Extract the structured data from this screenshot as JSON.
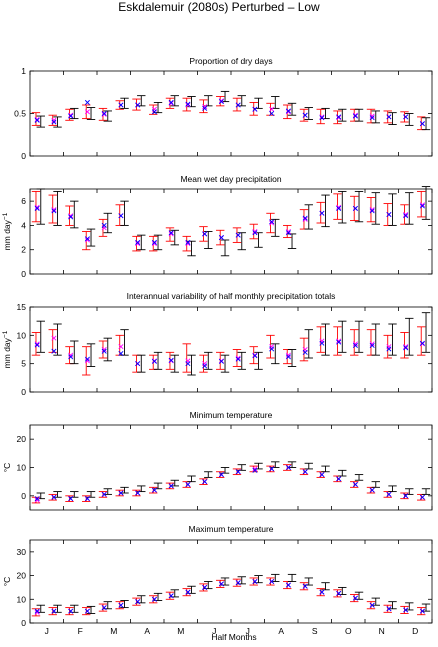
{
  "figure": {
    "title": "Eskdalemuir (2080s) Perturbed – Low",
    "xlabel": "Half Months",
    "month_labels": [
      "J",
      "F",
      "M",
      "A",
      "M",
      "J",
      "J",
      "A",
      "S",
      "O",
      "N",
      "D"
    ]
  },
  "colors": {
    "series_a_bar": "#ff0000",
    "series_b_bar": "#000000",
    "marker_blue": "#0000ff",
    "marker_magenta": "#ff00ff"
  },
  "chart_data": [
    {
      "type": "errorbar",
      "title": "Proportion of dry days",
      "ylabel": "",
      "ylim": [
        0,
        1
      ],
      "yticks": [
        0,
        0.5,
        1
      ],
      "ytick_labels": [
        "0",
        "0.5",
        "1"
      ],
      "series": [
        {
          "values": [
            0.43,
            0.42,
            0.48,
            0.52,
            0.49,
            0.6,
            0.6,
            0.55,
            0.62,
            0.6,
            0.58,
            0.65,
            0.6,
            0.55,
            0.55,
            0.52,
            0.48,
            0.46,
            0.45,
            0.48,
            0.47,
            0.46,
            0.46,
            0.38
          ],
          "upper": [
            0.51,
            0.48,
            0.55,
            0.6,
            0.56,
            0.65,
            0.67,
            0.6,
            0.68,
            0.68,
            0.66,
            0.7,
            0.68,
            0.63,
            0.62,
            0.6,
            0.55,
            0.55,
            0.53,
            0.55,
            0.55,
            0.53,
            0.52,
            0.46
          ],
          "lower": [
            0.36,
            0.36,
            0.42,
            0.44,
            0.42,
            0.55,
            0.54,
            0.49,
            0.56,
            0.53,
            0.51,
            0.59,
            0.53,
            0.48,
            0.48,
            0.44,
            0.41,
            0.38,
            0.38,
            0.41,
            0.39,
            0.39,
            0.4,
            0.31
          ]
        },
        {
          "values": [
            0.4,
            0.4,
            0.5,
            0.5,
            0.47,
            0.62,
            0.65,
            0.57,
            0.65,
            0.64,
            0.65,
            0.7,
            0.65,
            0.62,
            0.63,
            0.55,
            0.5,
            0.5,
            0.48,
            0.48,
            0.46,
            0.44,
            0.43,
            0.38
          ],
          "upper": [
            0.47,
            0.46,
            0.56,
            0.57,
            0.53,
            0.68,
            0.71,
            0.63,
            0.71,
            0.7,
            0.71,
            0.76,
            0.71,
            0.68,
            0.7,
            0.62,
            0.57,
            0.56,
            0.55,
            0.55,
            0.53,
            0.51,
            0.5,
            0.45
          ],
          "lower": [
            0.34,
            0.34,
            0.44,
            0.43,
            0.41,
            0.56,
            0.59,
            0.51,
            0.59,
            0.58,
            0.59,
            0.64,
            0.59,
            0.56,
            0.56,
            0.48,
            0.43,
            0.44,
            0.41,
            0.41,
            0.39,
            0.37,
            0.36,
            0.31
          ]
        }
      ],
      "markers_blue": [
        0.42,
        0.4,
        0.47,
        0.63,
        0.5,
        0.6,
        0.6,
        0.52,
        0.63,
        0.61,
        0.56,
        0.64,
        0.6,
        0.55,
        0.5,
        0.53,
        0.48,
        0.45,
        0.46,
        0.47,
        0.45,
        0.46,
        0.46,
        0.38
      ],
      "markers_magenta": [
        0.43,
        0.42,
        0.48,
        0.52,
        0.49,
        0.6,
        0.6,
        0.55,
        0.62,
        0.6,
        0.58,
        0.65,
        0.6,
        0.55,
        0.55,
        0.52,
        0.48,
        0.46,
        0.45,
        0.48,
        0.47,
        0.46,
        0.46,
        0.38
      ]
    },
    {
      "type": "errorbar",
      "title": "Mean wet day precipitation",
      "ylabel": "mm day",
      "ylabel_sup": "−1",
      "ylim": [
        0,
        7
      ],
      "yticks": [
        0,
        2,
        4,
        6
      ],
      "ytick_labels": [
        "0",
        "2",
        "4",
        "6"
      ],
      "series": [
        {
          "values": [
            5.5,
            5.3,
            4.8,
            2.8,
            3.8,
            4.8,
            2.5,
            2.5,
            3.3,
            2.5,
            3.3,
            3.0,
            3.2,
            3.5,
            4.2,
            3.5,
            4.5,
            5.0,
            5.5,
            5.4,
            5.3,
            4.9,
            4.9,
            5.7
          ],
          "upper": [
            6.8,
            6.5,
            5.6,
            3.5,
            4.5,
            5.7,
            3.1,
            3.1,
            3.8,
            3.1,
            3.9,
            3.6,
            3.8,
            4.1,
            5.0,
            4.0,
            5.3,
            5.9,
            6.6,
            6.4,
            6.3,
            5.8,
            5.7,
            6.8
          ],
          "lower": [
            4.3,
            4.2,
            4.0,
            2.0,
            3.1,
            4.0,
            1.9,
            1.9,
            2.7,
            1.9,
            2.7,
            2.4,
            2.6,
            2.9,
            3.4,
            3.0,
            3.7,
            4.2,
            4.5,
            4.4,
            4.3,
            4.0,
            4.1,
            4.7
          ]
        },
        {
          "values": [
            5.4,
            5.2,
            4.8,
            3.0,
            4.2,
            5.0,
            2.6,
            2.6,
            3.0,
            2.1,
            2.8,
            2.1,
            2.7,
            2.8,
            3.8,
            2.7,
            4.7,
            5.2,
            5.5,
            5.5,
            5.4,
            5.3,
            5.4,
            5.8
          ],
          "upper": [
            7.0,
            6.8,
            6.0,
            3.7,
            5.0,
            6.0,
            3.2,
            3.2,
            3.6,
            2.7,
            3.5,
            2.8,
            3.4,
            3.4,
            4.5,
            3.3,
            5.7,
            6.5,
            6.8,
            6.8,
            6.7,
            6.6,
            6.7,
            7.2
          ],
          "lower": [
            4.1,
            4.0,
            3.8,
            2.3,
            3.4,
            4.0,
            2.0,
            2.0,
            2.4,
            1.5,
            2.1,
            1.5,
            2.0,
            2.2,
            3.1,
            2.1,
            3.7,
            3.9,
            4.2,
            4.3,
            4.1,
            4.0,
            4.1,
            4.5
          ]
        }
      ],
      "markers_blue": [
        5.4,
        5.2,
        4.7,
        2.9,
        4.0,
        4.8,
        2.6,
        2.6,
        3.4,
        2.6,
        3.3,
        3.0,
        3.2,
        3.4,
        4.3,
        3.4,
        4.6,
        5.0,
        5.4,
        5.4,
        5.2,
        4.9,
        4.8,
        5.6
      ],
      "markers_magenta": [
        5.5,
        5.3,
        4.8,
        2.8,
        3.8,
        4.8,
        2.5,
        2.5,
        3.3,
        2.5,
        3.3,
        3.0,
        3.2,
        3.5,
        4.2,
        3.5,
        4.5,
        5.0,
        5.5,
        5.4,
        5.3,
        4.9,
        4.9,
        5.7
      ]
    },
    {
      "type": "errorbar",
      "title": "Interannual variability of half monthly precipitation totals",
      "ylabel": "mm day",
      "ylabel_sup": "−1",
      "ylim": [
        0,
        15
      ],
      "yticks": [
        0,
        5,
        10,
        15
      ],
      "ytick_labels": [
        "0",
        "5",
        "10",
        "15"
      ],
      "series": [
        {
          "values": [
            8.5,
            9.5,
            6.5,
            5.5,
            7.5,
            8.0,
            5.0,
            5.5,
            5.5,
            5.5,
            5.0,
            5.5,
            6.0,
            6.5,
            8.0,
            6.5,
            7.5,
            9.0,
            9.0,
            8.5,
            8.5,
            8.0,
            8.0,
            8.5
          ],
          "upper": [
            10.5,
            11.0,
            8.0,
            8.0,
            9.0,
            10.0,
            6.5,
            6.5,
            7.0,
            8.5,
            6.5,
            7.0,
            7.5,
            8.0,
            10.0,
            7.5,
            9.5,
            11.5,
            11.5,
            11.0,
            11.0,
            10.0,
            10.5,
            11.5
          ],
          "lower": [
            6.5,
            7.0,
            5.0,
            3.0,
            6.0,
            6.5,
            3.5,
            4.0,
            4.0,
            3.5,
            3.5,
            4.0,
            4.5,
            5.0,
            6.0,
            5.0,
            5.5,
            7.0,
            6.5,
            6.5,
            6.5,
            6.0,
            6.0,
            6.5
          ]
        },
        {
          "values": [
            9.5,
            9.0,
            7.0,
            6.5,
            7.5,
            8.5,
            5.0,
            5.5,
            5.0,
            4.5,
            5.5,
            5.0,
            5.5,
            5.5,
            6.5,
            6.0,
            8.5,
            9.0,
            9.5,
            9.5,
            9.0,
            9.0,
            9.5,
            10.0
          ],
          "upper": [
            12.5,
            12.0,
            9.0,
            8.5,
            9.5,
            11.0,
            6.5,
            7.0,
            6.5,
            6.5,
            7.0,
            6.5,
            7.0,
            7.0,
            8.5,
            7.5,
            11.0,
            12.0,
            12.5,
            12.5,
            12.0,
            12.0,
            13.0,
            14.0
          ],
          "lower": [
            7.0,
            6.5,
            5.0,
            4.5,
            5.5,
            6.5,
            3.5,
            4.0,
            3.5,
            3.0,
            4.0,
            3.5,
            4.0,
            4.0,
            5.0,
            4.5,
            6.0,
            6.5,
            7.0,
            7.0,
            6.5,
            6.5,
            6.5,
            7.0
          ]
        }
      ],
      "markers_blue": [
        8.3,
        7.2,
        6.2,
        5.8,
        7.2,
        6.8,
        5.0,
        5.4,
        5.6,
        5.0,
        4.6,
        5.4,
        5.8,
        6.4,
        7.6,
        6.2,
        7.0,
        8.6,
        8.8,
        8.2,
        8.2,
        7.6,
        7.8,
        8.6
      ],
      "markers_magenta": [
        8.5,
        9.5,
        6.5,
        5.5,
        7.5,
        8.0,
        5.0,
        5.5,
        5.5,
        5.5,
        5.0,
        5.5,
        6.0,
        6.5,
        8.0,
        6.5,
        7.5,
        9.0,
        9.0,
        8.5,
        8.5,
        8.0,
        8.0,
        8.5
      ]
    },
    {
      "type": "errorbar",
      "title": "Minimum temperature",
      "ylabel": "°C",
      "ylim": [
        -5,
        25
      ],
      "yticks": [
        0,
        10,
        20
      ],
      "ytick_labels": [
        "0",
        "10",
        "20"
      ],
      "series": [
        {
          "values": [
            -1.5,
            -0.5,
            -1.0,
            -1.0,
            0.5,
            1.0,
            1.0,
            2.0,
            3.5,
            4.0,
            5.0,
            7.5,
            8.5,
            9.5,
            9.5,
            10.0,
            8.5,
            7.5,
            6.0,
            4.0,
            2.0,
            0.5,
            0.0,
            -0.5
          ],
          "upper": [
            -0.5,
            0.5,
            0.0,
            0.0,
            1.5,
            2.0,
            2.0,
            3.0,
            4.5,
            5.0,
            6.0,
            8.5,
            9.5,
            10.5,
            10.5,
            11.0,
            9.5,
            8.5,
            7.0,
            5.0,
            3.0,
            1.5,
            1.0,
            0.5
          ],
          "lower": [
            -2.5,
            -1.5,
            -2.0,
            -2.0,
            -0.5,
            0.0,
            0.0,
            1.0,
            2.5,
            3.0,
            4.0,
            6.5,
            7.5,
            8.5,
            8.5,
            9.0,
            7.5,
            6.5,
            5.0,
            3.0,
            1.0,
            -0.5,
            -1.0,
            -1.5
          ]
        },
        {
          "values": [
            0.0,
            0.5,
            0.5,
            0.5,
            1.5,
            2.0,
            2.5,
            3.5,
            4.5,
            6.0,
            7.5,
            9.0,
            10.0,
            10.5,
            11.0,
            11.0,
            10.5,
            9.5,
            8.0,
            6.5,
            4.0,
            2.5,
            1.5,
            1.5
          ],
          "upper": [
            1.0,
            1.5,
            1.5,
            1.5,
            2.5,
            3.0,
            3.5,
            4.5,
            5.5,
            7.0,
            8.5,
            10.0,
            11.0,
            11.5,
            12.0,
            12.0,
            11.5,
            10.5,
            9.0,
            7.5,
            5.0,
            3.5,
            2.5,
            2.5
          ],
          "lower": [
            -1.0,
            -0.5,
            -0.5,
            -0.5,
            0.5,
            1.0,
            1.5,
            2.5,
            3.5,
            5.0,
            6.5,
            8.0,
            9.0,
            9.5,
            10.0,
            10.0,
            9.5,
            8.5,
            7.0,
            5.5,
            3.0,
            1.5,
            0.5,
            0.5
          ]
        }
      ],
      "markers_blue": [
        -1.0,
        -0.5,
        -1.0,
        -1.0,
        0.5,
        1.0,
        1.0,
        2.0,
        3.5,
        4.0,
        5.0,
        7.5,
        8.5,
        9.0,
        9.5,
        10.0,
        8.5,
        7.5,
        6.0,
        4.0,
        2.0,
        0.5,
        0.0,
        -0.5
      ],
      "markers_magenta": [
        -1.5,
        -0.5,
        -1.0,
        -1.0,
        0.5,
        1.0,
        1.0,
        2.0,
        3.5,
        4.0,
        5.0,
        7.5,
        8.5,
        9.5,
        9.5,
        10.0,
        8.5,
        7.5,
        6.0,
        4.0,
        2.0,
        0.5,
        0.0,
        -0.5
      ]
    },
    {
      "type": "errorbar",
      "title": "Maximum temperature",
      "ylabel": "°C",
      "ylim": [
        0,
        35
      ],
      "yticks": [
        0,
        10,
        20,
        30
      ],
      "ytick_labels": [
        "0",
        "10",
        "20",
        "30"
      ],
      "series": [
        {
          "values": [
            4.5,
            5.0,
            5.0,
            5.0,
            6.5,
            7.5,
            9.0,
            10.0,
            11.5,
            13.0,
            15.0,
            16.5,
            17.0,
            17.5,
            17.5,
            16.0,
            15.5,
            13.0,
            12.5,
            10.5,
            7.5,
            6.0,
            5.5,
            5.0
          ],
          "upper": [
            6.0,
            6.5,
            6.5,
            6.5,
            8.0,
            9.0,
            10.5,
            11.5,
            13.0,
            14.5,
            16.5,
            18.0,
            18.5,
            19.0,
            19.0,
            17.5,
            17.0,
            14.5,
            14.0,
            12.0,
            9.0,
            7.5,
            7.0,
            6.5
          ],
          "lower": [
            3.0,
            3.5,
            3.5,
            3.5,
            5.0,
            6.0,
            7.5,
            8.5,
            10.0,
            11.5,
            13.5,
            15.0,
            15.5,
            16.0,
            16.0,
            14.5,
            14.0,
            11.5,
            11.0,
            9.0,
            6.0,
            4.5,
            4.0,
            3.5
          ]
        },
        {
          "values": [
            6.0,
            6.0,
            6.0,
            5.5,
            7.5,
            8.0,
            10.0,
            11.0,
            12.5,
            14.0,
            16.0,
            17.5,
            18.0,
            18.5,
            19.0,
            19.0,
            17.5,
            15.5,
            13.5,
            11.5,
            9.0,
            7.5,
            7.0,
            6.5
          ],
          "upper": [
            7.5,
            7.5,
            7.5,
            7.0,
            9.0,
            9.5,
            11.5,
            12.5,
            14.0,
            15.5,
            17.5,
            19.0,
            19.5,
            20.0,
            20.5,
            20.5,
            19.0,
            17.0,
            15.0,
            13.0,
            10.5,
            9.0,
            8.5,
            8.0
          ],
          "lower": [
            4.5,
            4.5,
            4.5,
            4.0,
            6.0,
            6.5,
            8.5,
            9.5,
            11.0,
            12.5,
            14.5,
            16.0,
            16.5,
            17.0,
            17.5,
            17.5,
            16.0,
            14.0,
            12.0,
            10.0,
            7.5,
            6.0,
            5.5,
            5.0
          ]
        }
      ],
      "markers_blue": [
        5.0,
        5.0,
        5.0,
        5.0,
        6.5,
        7.5,
        9.0,
        10.0,
        11.5,
        13.0,
        15.0,
        16.5,
        17.0,
        17.5,
        17.5,
        16.0,
        15.5,
        13.0,
        12.5,
        10.5,
        7.5,
        6.0,
        5.5,
        5.0
      ],
      "markers_magenta": [
        4.5,
        5.0,
        5.0,
        5.0,
        6.5,
        7.5,
        9.0,
        10.0,
        11.5,
        13.0,
        15.0,
        16.5,
        17.0,
        17.5,
        17.5,
        16.0,
        15.5,
        13.0,
        12.5,
        10.5,
        7.5,
        6.0,
        5.5,
        5.0
      ]
    }
  ]
}
